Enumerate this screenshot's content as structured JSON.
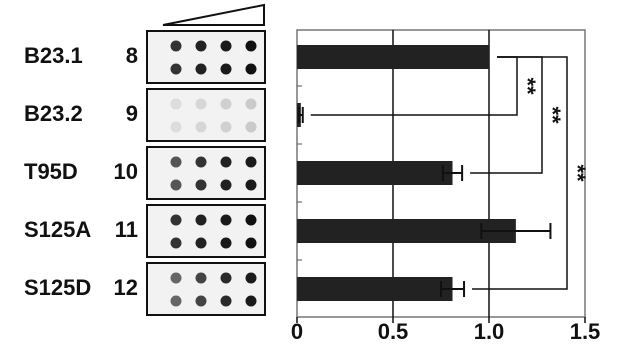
{
  "chart_data": {
    "type": "bar",
    "orientation": "horizontal",
    "categories": [
      "B23.1",
      "B23.2",
      "T95D",
      "S125A",
      "S125D"
    ],
    "lanes": [
      "8",
      "9",
      "10",
      "11",
      "12"
    ],
    "values": [
      1.0,
      0.02,
      0.81,
      1.14,
      0.81
    ],
    "errors": [
      0,
      0.01,
      0.05,
      0.18,
      0.06
    ],
    "color": "#222222",
    "xlim": [
      0,
      1.5
    ],
    "xticks": [
      0,
      0.5,
      {
        "value": 1,
        "label": "1.0"
      },
      1.5
    ],
    "grid": true,
    "significance": [
      {
        "label": "**",
        "pair": [
          0,
          1
        ]
      },
      {
        "label": "**",
        "pair": [
          0,
          2
        ]
      },
      {
        "label": "**",
        "pair": [
          0,
          4
        ]
      }
    ]
  }
}
